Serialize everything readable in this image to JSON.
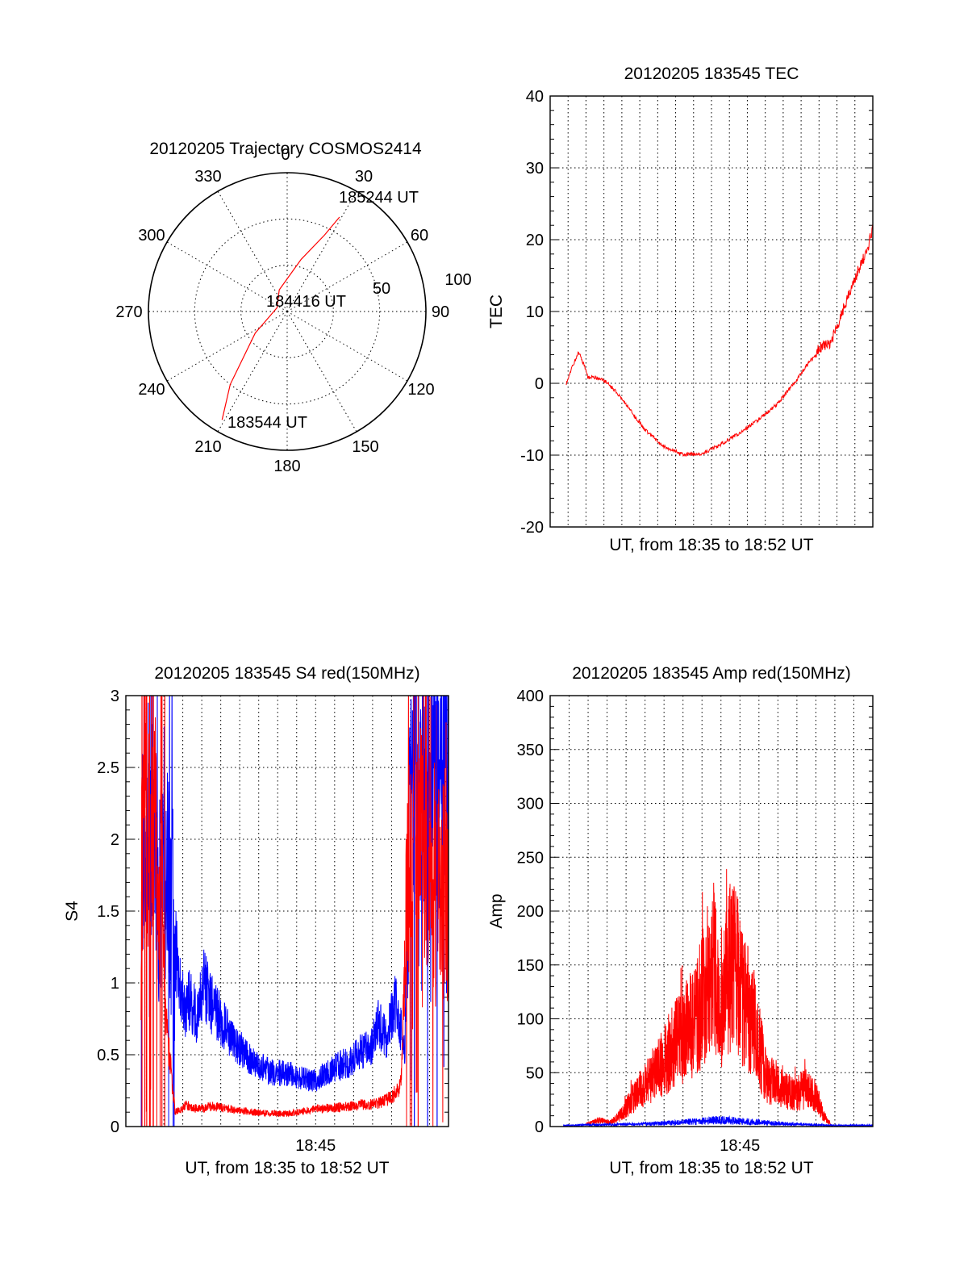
{
  "chart_data": [
    {
      "id": "trajectory",
      "type": "polar",
      "title": "20120205 Trajectory COSMOS2414",
      "angle_labels": [
        "0",
        "30",
        "60",
        "90",
        "120",
        "150",
        "180",
        "210",
        "240",
        "270",
        "300",
        "330"
      ],
      "radial_labels": [
        "50",
        "100"
      ],
      "elevation_rings_deg": [
        60,
        30
      ],
      "series": [
        {
          "color": "#ff0000",
          "points_az_el": [
            [
              211,
              8
            ],
            [
              218,
              30
            ],
            [
              236,
              65
            ],
            [
              290,
              83
            ],
            [
              340,
              75
            ],
            [
              15,
              55
            ],
            [
              26,
              35
            ],
            [
              29,
              20
            ]
          ],
          "annotations": [
            "183544 UT",
            "184416 UT",
            "185244 UT"
          ]
        }
      ]
    },
    {
      "id": "tec",
      "type": "line",
      "title": "20120205 183545 TEC",
      "xlabel": "UT, from 18:35 to 18:52 UT",
      "ylabel": "TEC",
      "xlim": [
        0,
        17
      ],
      "ylim": [
        -20,
        40
      ],
      "yticks": [
        "-20",
        "-10",
        "0",
        "10",
        "20",
        "30",
        "40"
      ],
      "xticks": [],
      "series": [
        {
          "color": "#ff0000",
          "x": [
            0.85,
            1.2,
            1.5,
            1.8,
            2.0,
            2.4,
            3.0,
            3.5,
            4.0,
            5.0,
            6.0,
            7.0,
            8.0,
            9.0,
            10.0,
            11.0,
            12.0,
            13.0,
            13.5,
            14.0,
            14.2,
            14.7,
            15.2,
            15.7,
            16.2,
            16.7,
            17.0
          ],
          "y": [
            0,
            2.5,
            4.3,
            2.5,
            0.8,
            0.8,
            0.2,
            -1.3,
            -3.0,
            -6.5,
            -8.8,
            -9.9,
            -9.8,
            -8.5,
            -6.9,
            -5.0,
            -2.8,
            0.5,
            2.5,
            4.0,
            5.0,
            5.3,
            8.5,
            12.0,
            15.5,
            18.5,
            21.5
          ]
        }
      ]
    },
    {
      "id": "s4",
      "type": "line",
      "title": "20120205 183545 S4 red(150MHz)",
      "xlabel": "UT, from 18:35 to 18:52 UT",
      "ylabel": "S4",
      "xlim": [
        0,
        17
      ],
      "ylim": [
        0,
        3
      ],
      "yticks": [
        "0",
        "0.5",
        "1",
        "1.5",
        "2",
        "2.5",
        "3"
      ],
      "xticks": [
        {
          "x": 10,
          "label": "18:45"
        }
      ],
      "series": [
        {
          "color": "#0000ff",
          "x": [
            0.8,
            1.2,
            1.7,
            2.2,
            2.8,
            3.1,
            3.4,
            3.7,
            4.1,
            4.5,
            5.0,
            5.6,
            6.3,
            7.0,
            7.6,
            8.2,
            8.8,
            9.4,
            10.0,
            10.6,
            11.2,
            11.8,
            12.4,
            12.9,
            13.3,
            13.7,
            14.2,
            14.7,
            15.0,
            15.6,
            16.2,
            17.0
          ],
          "y": [
            1.8,
            2.3,
            1.6,
            1.8,
            1.0,
            0.8,
            0.9,
            0.75,
            1.0,
            0.85,
            0.75,
            0.6,
            0.5,
            0.42,
            0.38,
            0.37,
            0.36,
            0.33,
            0.32,
            0.38,
            0.42,
            0.45,
            0.52,
            0.55,
            0.75,
            0.6,
            0.85,
            0.55,
            2.5,
            2.2,
            2.6,
            2.4
          ]
        },
        {
          "color": "#ff0000",
          "x": [
            0.8,
            1.0,
            1.3,
            1.6,
            1.9,
            2.2,
            2.6,
            2.9,
            3.2,
            3.8,
            4.5,
            5.2,
            6.0,
            6.8,
            7.6,
            8.4,
            9.2,
            10.0,
            10.8,
            11.6,
            12.4,
            13.2,
            14.0,
            14.5,
            14.8,
            15.2,
            15.8,
            16.4,
            17.0
          ],
          "y": [
            1.5,
            2.6,
            1.6,
            2.4,
            1.4,
            0.6,
            0.1,
            0.12,
            0.15,
            0.12,
            0.14,
            0.13,
            0.11,
            0.1,
            0.09,
            0.09,
            0.1,
            0.12,
            0.13,
            0.14,
            0.15,
            0.16,
            0.2,
            0.3,
            1.5,
            2.3,
            1.9,
            1.7,
            1.5
          ]
        }
      ]
    },
    {
      "id": "amp",
      "type": "line",
      "title": "20120205 183545 Amp red(150MHz)",
      "xlabel": "UT, from 18:35 to 18:52 UT",
      "ylabel": "Amp",
      "xlim": [
        0,
        17
      ],
      "ylim": [
        0,
        400
      ],
      "yticks": [
        "0",
        "50",
        "100",
        "150",
        "200",
        "250",
        "300",
        "350",
        "400"
      ],
      "xticks": [
        {
          "x": 10,
          "label": "18:45"
        }
      ],
      "series": [
        {
          "color": "#ff0000",
          "x": [
            1.9,
            2.5,
            3.2,
            3.8,
            4.3,
            4.8,
            5.3,
            5.8,
            6.3,
            6.8,
            7.3,
            7.7,
            8.0,
            8.3,
            8.6,
            8.9,
            9.2,
            9.5,
            9.8,
            10.1,
            10.4,
            10.7,
            11.0,
            11.3,
            11.7,
            12.2,
            12.8,
            13.4,
            14.0,
            14.4,
            14.8
          ],
          "y": [
            2,
            6,
            4,
            12,
            25,
            35,
            45,
            55,
            70,
            80,
            90,
            100,
            120,
            135,
            150,
            120,
            125,
            150,
            145,
            120,
            110,
            100,
            80,
            50,
            42,
            38,
            30,
            35,
            30,
            10,
            2
          ]
        },
        {
          "color": "#0000ff",
          "x": [
            0.7,
            2,
            4,
            6,
            8,
            9,
            10,
            11,
            13,
            15,
            17
          ],
          "y": [
            1,
            1.5,
            2,
            3,
            5,
            6,
            5,
            4,
            2,
            1,
            1
          ]
        }
      ]
    }
  ]
}
